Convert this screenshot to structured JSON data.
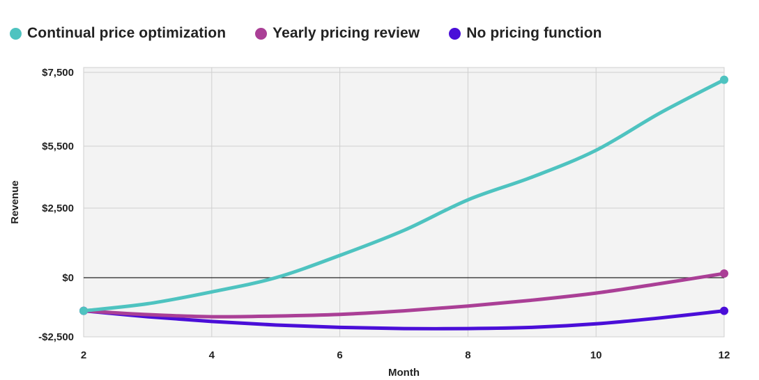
{
  "chart_data": {
    "type": "line",
    "title": "",
    "xlabel": "Month",
    "ylabel": "Revenue",
    "x": [
      2,
      3,
      4,
      5,
      6,
      7,
      8,
      9,
      10,
      11,
      12
    ],
    "x_ticks": [
      2,
      4,
      6,
      8,
      10,
      12
    ],
    "xlim": [
      2,
      12
    ],
    "y_ticks": [
      {
        "value": 7500,
        "label": "$7,500"
      },
      {
        "value": 5500,
        "label": "$5,500"
      },
      {
        "value": 2500,
        "label": "$2,500"
      },
      {
        "value": 0,
        "label": "$0"
      },
      {
        "value": -2500,
        "label": "-$2,500"
      }
    ],
    "ylim": [
      -2500,
      7500
    ],
    "grid": true,
    "legend_position": "top",
    "series": [
      {
        "name": "Continual price optimization",
        "color": "#4ec3c0",
        "values": [
          -1400,
          -1100,
          -600,
          0,
          800,
          1700,
          2900,
          4000,
          5300,
          6400,
          7300
        ]
      },
      {
        "name": "Yearly pricing review",
        "color": "#aa3f96",
        "values": [
          -1400,
          -1560,
          -1650,
          -1620,
          -1550,
          -1400,
          -1200,
          -950,
          -650,
          -250,
          150
        ]
      },
      {
        "name": "No pricing function",
        "color": "#4a0ed8",
        "values": [
          -1400,
          -1650,
          -1850,
          -2000,
          -2100,
          -2150,
          -2150,
          -2100,
          -1950,
          -1700,
          -1400
        ]
      }
    ]
  }
}
